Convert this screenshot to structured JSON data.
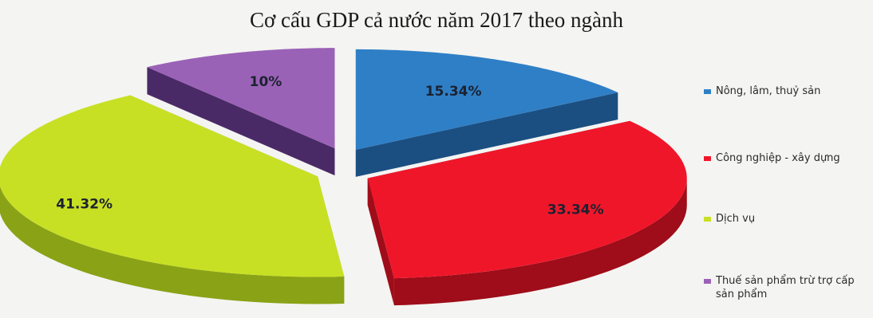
{
  "chart_data": {
    "type": "pie",
    "title": "Cơ cấu GDP cả nước năm 2017 theo ngành",
    "slices": [
      {
        "name": "Nông, lâm, thuỷ sản",
        "value": 15.34,
        "label": "15.34%",
        "color": "#2f7fc6",
        "side_color": "#1b4f82"
      },
      {
        "name": "Công nghiệp - xây dựng",
        "value": 33.34,
        "label": "33.34%",
        "color": "#f0162a",
        "side_color": "#9e0d19"
      },
      {
        "name": "Dịch vụ",
        "value": 41.32,
        "label": "41.32%",
        "color": "#c8e024",
        "side_color": "#8aa216"
      },
      {
        "name": "Thuế sản phẩm trừ trợ cấp sản phẩm",
        "value": 10,
        "label": "10%",
        "color": "#9a62b6",
        "side_color": "#4a2a66"
      }
    ],
    "legend_position": "right",
    "exploded": true,
    "three_d": true
  }
}
